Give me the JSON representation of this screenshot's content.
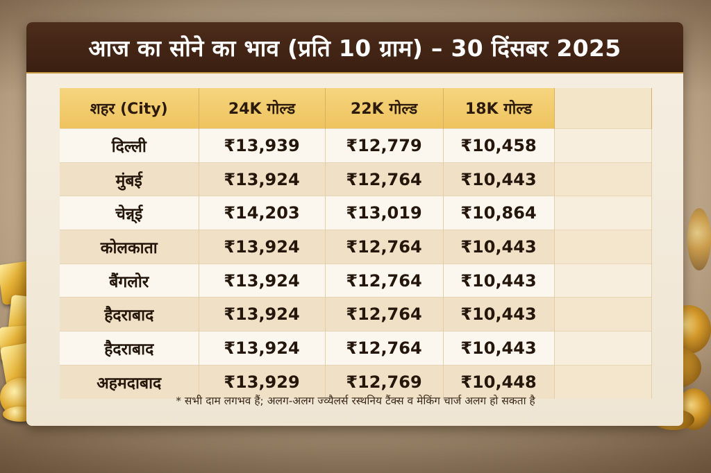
{
  "title": "आज का सोने का भाव (प्रति 10 ग्राम) – 30 दिंसबर 2025",
  "table": {
    "headers": [
      "शहर (City)",
      "24K गोल्ड",
      "22K गोल्ड",
      "18K गोल्ड"
    ],
    "rows": [
      {
        "city": "दिल्ली",
        "k24": "₹13,939",
        "k22": "₹12,779",
        "k18": "₹10,458"
      },
      {
        "city": "मुंबई",
        "k24": "₹13,924",
        "k22": "₹12,764",
        "k18": "₹10,443"
      },
      {
        "city": "चेन्न्ई",
        "k24": "₹14,203",
        "k22": "₹13,019",
        "k18": "₹10,864"
      },
      {
        "city": "कोलकाता",
        "k24": "₹13,924",
        "k22": "₹12,764",
        "k18": "₹10,443"
      },
      {
        "city": "बैंगलोर",
        "k24": "₹13,924",
        "k22": "₹12,764",
        "k18": "₹10,443"
      },
      {
        "city": "हैदराबाद",
        "k24": "₹13,924",
        "k22": "₹12,764",
        "k18": "₹10,443"
      },
      {
        "city": "हैदराबाद",
        "k24": "₹13,924",
        "k22": "₹12,764",
        "k18": "₹10,443"
      },
      {
        "city": "अहमदाबाद",
        "k24": "₹13,929",
        "k22": "₹12,769",
        "k18": "₹10,448"
      }
    ]
  },
  "footnote": "* सभी दाम लगभव हैं; अलग-अलग ज्व्यैलर्स रस्थनिय टैंक्स व मेकिंग चार्ज अलग हो सकता है",
  "colors": {
    "header_bg": "#3a1f11",
    "table_header_bg": "#eec35e",
    "row_light": "#fbf7ee",
    "row_dark": "#f0e1c6"
  },
  "icons": [
    "gold-bars-icon",
    "gold-coins-icon",
    "gold-jewelry-icon"
  ]
}
